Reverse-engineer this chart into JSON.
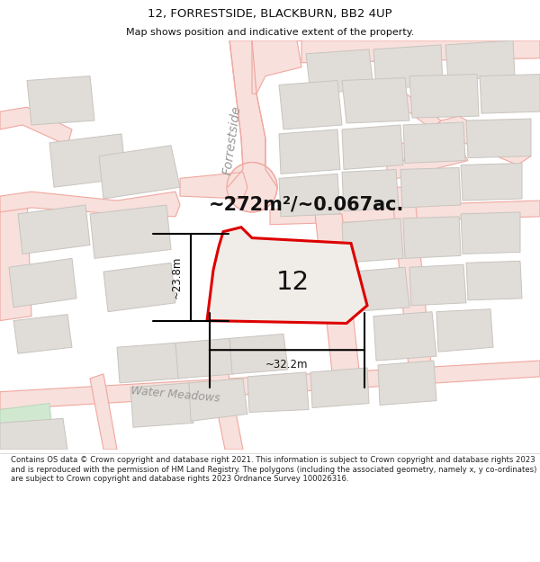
{
  "title": "12, FORRESTSIDE, BLACKBURN, BB2 4UP",
  "subtitle": "Map shows position and indicative extent of the property.",
  "area_label": "~272m²/~0.067ac.",
  "number_label": "12",
  "dim_width": "~32.2m",
  "dim_height": "~23.8m",
  "footer": "Contains OS data © Crown copyright and database right 2021. This information is subject to Crown copyright and database rights 2023 and is reproduced with the permission of HM Land Registry. The polygons (including the associated geometry, namely x, y co-ordinates) are subject to Crown copyright and database rights 2023 Ordnance Survey 100026316.",
  "map_bg": "#f5f2ee",
  "parcel_fill": "#e0dcd7",
  "parcel_edge": "#c8c4bf",
  "road_line_color": "#f0a8a0",
  "road_fill_color": "#f8e0dc",
  "green_fill": "#d0e8d0",
  "property_color": "#dd0000",
  "property_fill": "#f0ece8",
  "dim_color": "#111111",
  "label_color": "#888888",
  "text_color": "#111111",
  "header_bg": "#ffffff",
  "footer_bg": "#ffffff",
  "title_color": "#111111",
  "footer_color": "#222222"
}
